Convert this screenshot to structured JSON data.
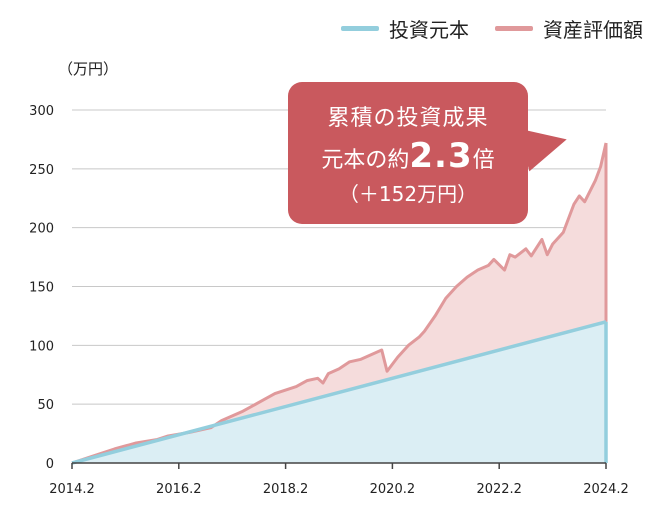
{
  "legend": {
    "principal_label": "投資元本",
    "valuation_label": "資産評価額"
  },
  "unit_label": "（万円）",
  "callout": {
    "line1": "累積の投資成果",
    "line2_prefix": "元本の約",
    "line2_value": "2.3",
    "line2_suffix": "倍",
    "line3": "（＋152万円）"
  },
  "colors": {
    "principal_line": "#93cedd",
    "principal_fill": "#dbeef4",
    "valuation_line": "#e0999b",
    "valuation_fill": "#f5dcdc",
    "callout_bg": "#c9595e",
    "grid": "#c8c8c8"
  },
  "chart_data": {
    "type": "area",
    "ylim": [
      0,
      300
    ],
    "xlim": [
      2014.2,
      2024.2
    ],
    "yticks": [
      "0",
      "50",
      "100",
      "150",
      "200",
      "250",
      "300"
    ],
    "ytick_values": [
      0,
      50,
      100,
      150,
      200,
      250,
      300
    ],
    "xticks": [
      "2014.2",
      "2016.2",
      "2018.2",
      "2020.2",
      "2022.2",
      "2024.2"
    ],
    "xtick_values": [
      2014.2,
      2016.2,
      2018.2,
      2020.2,
      2022.2,
      2024.2
    ],
    "grid": true,
    "legend_position": "top-right",
    "series": [
      {
        "name": "投資元本",
        "x": [
          2014.2,
          2024.2
        ],
        "values": [
          0,
          120
        ]
      },
      {
        "name": "資産評価額",
        "x": [
          2014.2,
          2014.6,
          2015.0,
          2015.4,
          2015.8,
          2016.0,
          2016.4,
          2016.8,
          2017.0,
          2017.4,
          2017.8,
          2018.0,
          2018.2,
          2018.4,
          2018.6,
          2018.8,
          2018.9,
          2019.0,
          2019.2,
          2019.4,
          2019.6,
          2019.8,
          2020.0,
          2020.1,
          2020.3,
          2020.5,
          2020.7,
          2020.8,
          2021.0,
          2021.2,
          2021.4,
          2021.6,
          2021.8,
          2022.0,
          2022.1,
          2022.3,
          2022.4,
          2022.5,
          2022.7,
          2022.8,
          2023.0,
          2023.1,
          2023.2,
          2023.4,
          2023.6,
          2023.7,
          2023.8,
          2024.0,
          2024.1,
          2024.2
        ],
        "values": [
          0,
          6,
          12,
          17,
          20,
          23,
          26,
          30,
          36,
          44,
          54,
          59,
          62,
          65,
          70,
          72,
          68,
          76,
          80,
          86,
          88,
          92,
          96,
          78,
          90,
          100,
          107,
          112,
          125,
          140,
          150,
          158,
          164,
          168,
          173,
          164,
          177,
          175,
          182,
          176,
          190,
          177,
          186,
          196,
          220,
          227,
          222,
          240,
          252,
          272
        ]
      }
    ]
  }
}
